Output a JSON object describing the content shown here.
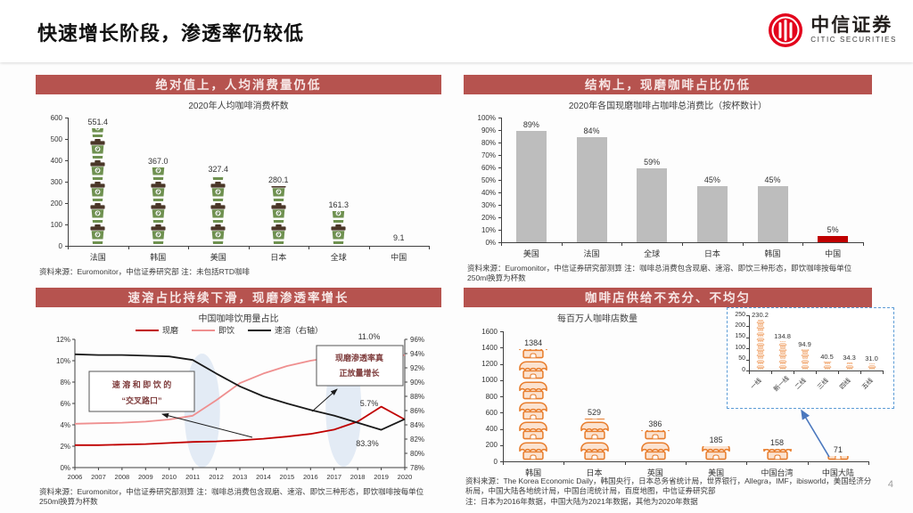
{
  "slide": {
    "title": "快速增长阶段，渗透率仍较低",
    "page_number": "4"
  },
  "logo": {
    "name_cn": "中信证券",
    "name_en": "CITIC SECURITIES"
  },
  "panels": {
    "p1": {
      "header": "绝对值上，人均消费量仍低",
      "source": "资料来源：Euromonitor，中信证券研究部  注：未包括RTD咖啡"
    },
    "p2": {
      "header": "结构上，现磨咖啡占比仍低",
      "source": "资料来源：Euromonitor，中信证券研究部测算  注：咖啡总消费包含现磨、速溶、即饮三种形态，即饮咖啡按每单位250ml换算为杯数"
    },
    "p3": {
      "header": "速溶占比持续下滑，现磨渗透率增长",
      "source": "资料来源：Euromonitor，中信证券研究部测算  注：咖啡总消费包含现磨、速溶、即饮三种形态，即饮咖啡按每单位250ml换算为杯数"
    },
    "p4": {
      "header": "咖啡店供给不充分、不均匀",
      "source_line1": "资料来源：The Korea Economic Daily，韩国央行，日本总务省统计局，世界银行，Allegra，IMF，ibisworld，美国经济分析局，中国大陆各地统计局，中国台湾统计局，百度地图，中信证券研究部",
      "source_line2": "注：日本为2016年数据，中国大陆为2021年数据，其他为2020年数据"
    }
  },
  "chart_data": [
    {
      "type": "bar",
      "style": "pictogram",
      "icon": "coffee-cup",
      "title": "2020年人均咖啡消费杯数",
      "categories": [
        "法国",
        "韩国",
        "美国",
        "日本",
        "全球",
        "中国"
      ],
      "values": [
        551.4,
        367.0,
        327.4,
        280.1,
        161.3,
        9.1
      ],
      "labels": [
        "551.4",
        "367.0",
        "327.4",
        "280.1",
        "161.3",
        "9.1"
      ],
      "units_per_icon": 100,
      "ylim": [
        0,
        600
      ],
      "yticks": [
        "0",
        "100",
        "200",
        "300",
        "400",
        "500",
        "600"
      ],
      "icon_colors": {
        "body": "#6f9150",
        "lid": "#4a3628"
      }
    },
    {
      "type": "bar",
      "style": "plain",
      "title": "2020年各国现磨咖啡占咖啡总消费比（按杯数计）",
      "categories": [
        "美国",
        "法国",
        "全球",
        "日本",
        "韩国",
        "中国"
      ],
      "values": [
        89,
        84,
        59,
        45,
        45,
        5
      ],
      "labels": [
        "89%",
        "84%",
        "59%",
        "45%",
        "45%",
        "5%"
      ],
      "bar_color": "#bdbdbd",
      "highlight_index": 5,
      "highlight_color": "#c00000",
      "ylim": [
        0,
        100
      ],
      "yticks": [
        "0%",
        "10%",
        "20%",
        "30%",
        "40%",
        "50%",
        "60%",
        "70%",
        "80%",
        "90%",
        "100%"
      ]
    },
    {
      "type": "line",
      "title": "中国咖啡饮用量占比",
      "x": [
        "2006",
        "2007",
        "2008",
        "2009",
        "2010",
        "2011",
        "2012",
        "2013",
        "2014",
        "2015",
        "2016",
        "2017",
        "2018",
        "2019",
        "2020"
      ],
      "left_axis": {
        "min": 0,
        "max": 12,
        "ticks": [
          "0%",
          "2%",
          "4%",
          "6%",
          "8%",
          "10%",
          "12%"
        ]
      },
      "right_axis": {
        "min": 78,
        "max": 96,
        "ticks": [
          "78%",
          "80%",
          "82%",
          "84%",
          "86%",
          "88%",
          "90%",
          "92%",
          "94%",
          "96%"
        ]
      },
      "series": [
        {
          "name": "现磨",
          "axis": "left",
          "color": "#c00000",
          "values": [
            2.1,
            2.1,
            2.15,
            2.2,
            2.3,
            2.4,
            2.45,
            2.55,
            2.7,
            2.9,
            3.15,
            3.55,
            4.3,
            5.7,
            4.5
          ]
        },
        {
          "name": "即饮",
          "axis": "left",
          "color": "#ef8f8f",
          "values": [
            4.1,
            4.15,
            4.2,
            4.3,
            4.5,
            4.85,
            6.3,
            7.9,
            8.8,
            9.5,
            10.0,
            10.35,
            10.75,
            11.0,
            10.5
          ]
        },
        {
          "name": "速溶（右轴）",
          "axis": "right",
          "color": "#1a1a1a",
          "values": [
            93.9,
            93.8,
            93.8,
            93.7,
            93.6,
            93.1,
            91.2,
            89.4,
            88.0,
            87.0,
            86.1,
            85.3,
            84.3,
            83.3,
            84.8
          ]
        }
      ],
      "point_labels": [
        {
          "text": "11.0%"
        },
        {
          "text": "5.7%"
        },
        {
          "text": "83.3%"
        }
      ],
      "annotations": [
        {
          "lines": [
            "速 溶 和 即 饮 的",
            "“交叉路口”"
          ]
        },
        {
          "lines": [
            "现磨渗透率真",
            "正放量增长"
          ]
        }
      ],
      "highlight_color": "#dce6f2",
      "annotation_text_color": "#7d3a3a"
    },
    {
      "type": "bar",
      "style": "pictogram",
      "icon": "storefront",
      "title": "每百万人咖啡店数量",
      "categories": [
        "韩国",
        "日本",
        "英国",
        "美国",
        "中国台湾",
        "中国大陆"
      ],
      "values": [
        1384,
        529,
        386,
        185,
        158,
        71
      ],
      "labels": [
        "1384",
        "529",
        "386",
        "185",
        "158",
        "71"
      ],
      "units_per_icon": 250,
      "ylim": [
        0,
        1600
      ],
      "yticks": [
        "0",
        "200",
        "400",
        "600",
        "800",
        "1000",
        "1200",
        "1400",
        "1600"
      ],
      "icon_colors": {
        "fill": "#fbe2cf",
        "stroke": "#e87e2e"
      },
      "inset": {
        "categories": [
          "一线",
          "新一线",
          "二线",
          "三线",
          "四线",
          "五线"
        ],
        "values": [
          230.2,
          134.8,
          94.9,
          40.5,
          34.3,
          31.0
        ],
        "labels": [
          "230.2",
          "134.8",
          "94.9",
          "40.5",
          "34.3",
          "31.0"
        ],
        "units_per_icon": 25,
        "ylim": [
          0,
          250
        ],
        "yticks": [
          "0",
          "50",
          "100",
          "150",
          "200",
          "250"
        ],
        "arrow_color": "#4b78be"
      }
    }
  ]
}
